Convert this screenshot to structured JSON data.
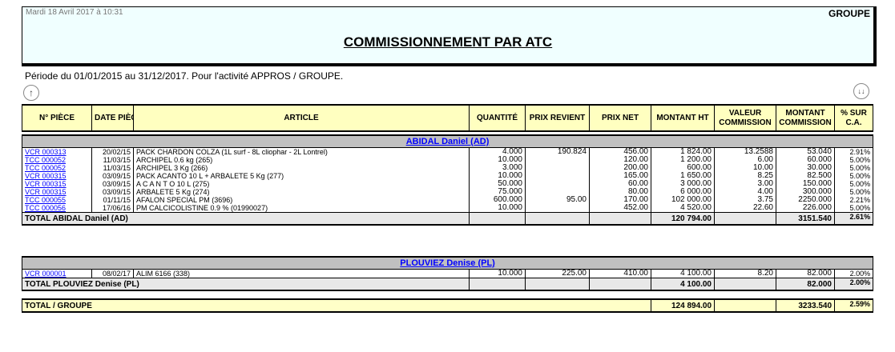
{
  "header": {
    "timestamp": "Mardi 18 Avril 2017 à 10:31",
    "group": "GROUPE",
    "title": "COMMISSIONNEMENT PAR ATC"
  },
  "period": "Période du 01/01/2015 au 31/12/2017. Pour l'activité APPROS / GROUPE.",
  "icons": {
    "up": "arrow-up-icon",
    "down": "double-arrow-down-icon"
  },
  "columns": [
    "N° PIÈCE",
    "DATE PIÈCE",
    "ARTICLE",
    "QUANTITÉ",
    "PRIX REVIENT",
    "PRIX NET",
    "MONTANT HT",
    "VALEUR COMMISSION",
    "MONTANT COMMISSION",
    "% SUR C.A."
  ],
  "groups": [
    {
      "name": "ABIDAL  Daniel (AD)",
      "rows": [
        [
          "VCR  000313",
          "20/02/15",
          "PACK CHARDON COLZA (1L surf - 8L cliophar - 2L Lontrel)",
          "4.000",
          "190.824",
          "456.00",
          "1 824.00",
          "13.2588",
          "53.040",
          "2.91%"
        ],
        [
          "TCC  000052",
          "11/03/15",
          "ARCHIPEL 0.6 kg (265)",
          "10.000",
          "",
          "120.00",
          "1 200.00",
          "6.00",
          "60.000",
          "5.00%"
        ],
        [
          "TCC  000052",
          "11/03/15",
          "ARCHIPEL 3 Kg (266)",
          "3.000",
          "",
          "200.00",
          "600.00",
          "10.00",
          "30.000",
          "5.00%"
        ],
        [
          "VCR  000315",
          "03/09/15",
          "PACK ACANTO 10 L + ARBALETE 5 Kg (277)",
          "10.000",
          "",
          "165.00",
          "1 650.00",
          "8.25",
          "82.500",
          "5.00%"
        ],
        [
          "VCR  000315",
          "03/09/15",
          "A C A N T O 10 L (275)",
          "50.000",
          "",
          "60.00",
          "3 000.00",
          "3.00",
          "150.000",
          "5.00%"
        ],
        [
          "VCR  000315",
          "03/09/15",
          "ARBALETE 5 Kg (274)",
          "75.000",
          "",
          "80.00",
          "6 000.00",
          "4.00",
          "300.000",
          "5.00%"
        ],
        [
          "TCC  000055",
          "01/11/15",
          "AFALON SPECIAL PM (3696)",
          "600.000",
          "95.00",
          "170.00",
          "102 000.00",
          "3.75",
          "2250.000",
          "2.21%"
        ],
        [
          "TCC  000056",
          "17/06/16",
          "PM CALCICOLISTINE 0.9 % (01990027)",
          "10.000",
          "",
          "452.00",
          "4 520.00",
          "22.60",
          "226.000",
          "5.00%"
        ]
      ],
      "total": {
        "label": "TOTAL ABIDAL  Daniel (AD)",
        "montant_ht": "120 794.00",
        "montant_commission": "3151.540",
        "pct": "2.61%"
      }
    },
    {
      "name": "PLOUVIEZ Denise (PL)",
      "rows": [
        [
          "VCR  000001",
          "08/02/17",
          "ALIM 6166 (338)",
          "10.000",
          "225.00",
          "410.00",
          "4 100.00",
          "8.20",
          "82.000",
          "2.00%"
        ]
      ],
      "total": {
        "label": "TOTAL PLOUVIEZ Denise (PL)",
        "montant_ht": "4 100.00",
        "montant_commission": "82.000",
        "pct": "2.00%"
      }
    }
  ],
  "grand_total": {
    "label": "TOTAL / GROUPE",
    "montant_ht": "124 894.00",
    "montant_commission": "3233.540",
    "pct": "2.59%"
  }
}
